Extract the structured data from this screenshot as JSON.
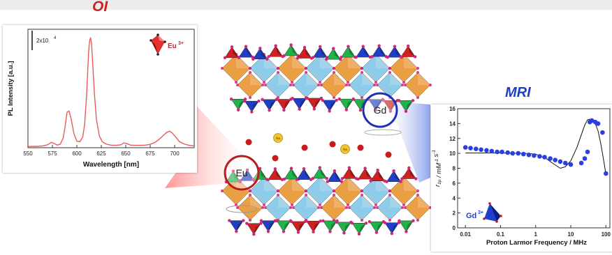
{
  "titles": {
    "optical": "OI",
    "mri": "MRI"
  },
  "structure": {
    "ion_labels": {
      "europium": "Eu",
      "gadolinium": "Gd"
    },
    "interlayer_labels": [
      "Na",
      "Na"
    ]
  },
  "colors": {
    "pl_line": "#e85a5a",
    "optical_accent": "#d21f1f",
    "mri_accent": "#1d3fc4",
    "octahedra_orange": "#e8922c",
    "octahedra_cyan": "#7fc6e6",
    "tetra_red": "#d02020",
    "tetra_blue": "#1f3fc8",
    "tetra_green": "#1fb34a",
    "oxygen": "#d6247a",
    "sodium": "#f2c230",
    "interlayer_o": "#c81c1c"
  },
  "chart_data": [
    {
      "type": "line",
      "title": "",
      "xlabel": "Wavelength [nm]",
      "ylabel": "PL Intensity [a.u.]",
      "xticks": [
        "550",
        "575",
        "600",
        "625",
        "650",
        "675",
        "700"
      ],
      "xlim": [
        550,
        720
      ],
      "ylim": [
        0,
        100
      ],
      "scale_bar": "2x10",
      "scale_bar_exp": "4",
      "legend": "Eu",
      "legend_sup": "3+",
      "legend_position": "top-right",
      "series": [
        {
          "x": [
            550,
            560,
            565,
            570,
            574,
            577,
            580,
            583,
            586,
            588,
            590,
            592,
            594,
            597,
            600,
            603,
            606,
            608,
            610,
            612,
            613,
            614,
            615,
            616,
            618,
            620,
            623,
            626,
            630,
            635,
            640,
            645,
            648,
            651,
            655,
            660,
            665,
            670,
            675,
            680,
            684,
            688,
            692,
            695,
            698,
            701,
            705,
            710,
            715,
            720
          ],
          "y": [
            1.0,
            1.2,
            1.5,
            2.5,
            4.5,
            3.5,
            2.2,
            3.0,
            8.0,
            18.0,
            30.0,
            31.0,
            25.0,
            12.0,
            5.5,
            5.0,
            9.0,
            20.0,
            45.0,
            80.0,
            90.0,
            93.0,
            88.0,
            74.0,
            45.0,
            24.0,
            10.0,
            5.0,
            3.0,
            2.2,
            2.0,
            2.5,
            4.0,
            3.5,
            2.2,
            2.0,
            2.0,
            2.2,
            2.8,
            4.5,
            7.0,
            10.0,
            13.0,
            14.0,
            12.0,
            9.0,
            5.0,
            3.0,
            2.0,
            1.5
          ]
        }
      ]
    },
    {
      "type": "scatter",
      "title": "",
      "xlabel": "Proton Larmor Frequency / MHz",
      "ylabel_main": "r",
      "ylabel_sub": "1p",
      "ylabel_tail": " / mM",
      "ylabel_sup": "-1",
      "ylabel_end": " s",
      "ylabel_end_sup": "-1",
      "x_scale": "log",
      "xticks": [
        "0.01",
        "0.1",
        "1",
        "10",
        "100"
      ],
      "yticks": [
        "0",
        "2",
        "4",
        "6",
        "8",
        "10",
        "12",
        "14",
        "16"
      ],
      "xlim": [
        0.006,
        130
      ],
      "ylim": [
        0,
        16
      ],
      "legend": "Gd",
      "legend_sup": "3+",
      "legend_position": "bottom-left",
      "points": {
        "x": [
          0.01,
          0.014,
          0.02,
          0.028,
          0.04,
          0.056,
          0.08,
          0.11,
          0.16,
          0.22,
          0.32,
          0.45,
          0.64,
          0.9,
          1.3,
          1.8,
          2.6,
          3.6,
          5.0,
          7.0,
          10.0,
          20.0,
          25.0,
          30.0,
          35.0,
          40.0,
          50.0,
          60.0,
          80.0,
          100.0
        ],
        "y": [
          10.8,
          10.7,
          10.6,
          10.5,
          10.4,
          10.3,
          10.2,
          10.2,
          10.1,
          10.0,
          10.0,
          9.9,
          9.8,
          9.7,
          9.6,
          9.5,
          9.3,
          9.1,
          8.9,
          8.7,
          8.5,
          8.7,
          9.3,
          10.2,
          14.2,
          14.4,
          14.2,
          14.0,
          12.8,
          7.3
        ]
      },
      "fit": {
        "x": [
          0.01,
          0.02,
          0.05,
          0.1,
          0.2,
          0.5,
          1.0,
          2.0,
          3.0,
          5.0,
          7.0,
          10.0,
          15.0,
          20.0,
          25.0,
          30.0,
          35.0,
          40.0,
          50.0,
          60.0,
          70.0,
          80.0,
          100.0
        ],
        "y": [
          10.05,
          10.05,
          10.05,
          10.05,
          10.02,
          10.0,
          9.9,
          9.3,
          8.7,
          8.0,
          8.2,
          9.0,
          10.8,
          12.5,
          13.8,
          14.5,
          14.6,
          14.5,
          14.0,
          13.0,
          11.5,
          10.0,
          7.2
        ]
      }
    }
  ]
}
